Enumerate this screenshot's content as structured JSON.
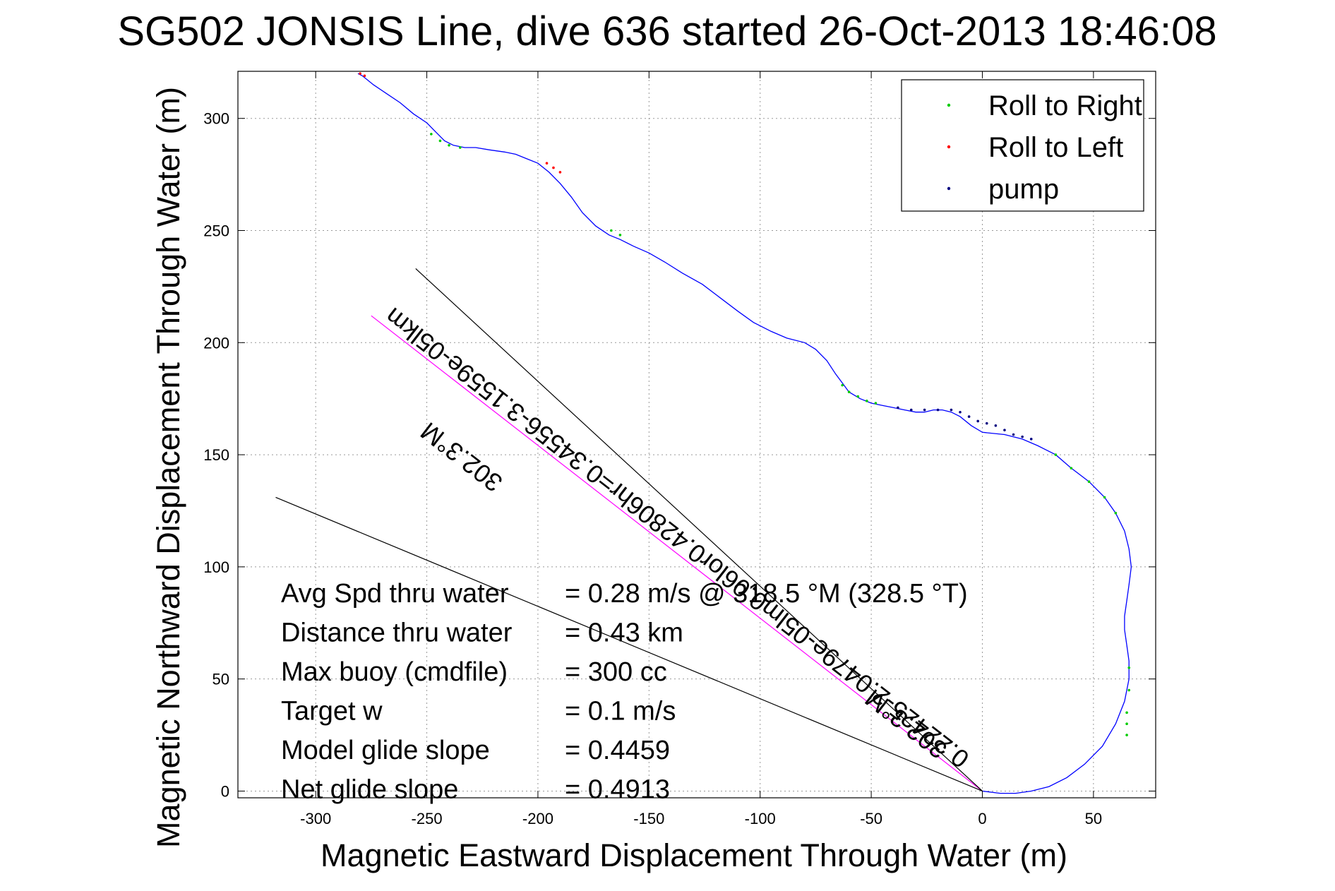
{
  "chart_data": {
    "type": "line",
    "title": "SG502 JONSIS Line, dive 636 started 26-Oct-2013 18:46:08",
    "xlabel": "Magnetic Eastward Displacement Through Water (m)",
    "ylabel": "Magnetic Northward Displacement Through Water (m)",
    "xlim": [
      -335,
      78
    ],
    "ylim": [
      -3,
      321
    ],
    "xticks": [
      -300,
      -250,
      -200,
      -150,
      -100,
      -50,
      0,
      50
    ],
    "yticks": [
      0,
      50,
      100,
      150,
      200,
      250,
      300
    ],
    "grid": true,
    "legend_position": "top-right",
    "colors": {
      "track": "#0000ff",
      "roll_right": "#00cc00",
      "roll_left": "#ff0000",
      "pump": "#000080",
      "mean_line": "#ff00ff",
      "bound_line": "#000000"
    },
    "legend": [
      {
        "label": "Roll to Right",
        "color": "#00cc00"
      },
      {
        "label": "Roll to Left",
        "color": "#ff0000"
      },
      {
        "label": "pump",
        "color": "#000080"
      }
    ],
    "series": [
      {
        "type": "line",
        "x": [
          0,
          8,
          15,
          22,
          30,
          38,
          46,
          54,
          60,
          64,
          66,
          66,
          65,
          64,
          64,
          65,
          66,
          67,
          66,
          64,
          60,
          55,
          48,
          40,
          33,
          25,
          18,
          10,
          0,
          -5,
          -10,
          -14,
          -18,
          -22,
          -26,
          -30,
          -35,
          -40,
          -45,
          -50,
          -55,
          -60,
          -63,
          -66,
          -70,
          -75,
          -80,
          -88,
          -95,
          -103,
          -110,
          -118,
          -126,
          -135,
          -143,
          -150,
          -157,
          -163,
          -168,
          -174,
          -180,
          -185,
          -190,
          -195,
          -200,
          -205,
          -210,
          -215,
          -222,
          -228,
          -233,
          -238,
          -242,
          -246,
          -250,
          -256,
          -262,
          -268,
          -274,
          -279,
          -281
        ],
        "y": [
          0,
          -1,
          -1,
          0,
          2,
          6,
          12,
          20,
          30,
          40,
          50,
          58,
          65,
          72,
          78,
          85,
          92,
          100,
          108,
          116,
          124,
          131,
          138,
          144,
          150,
          154,
          157,
          159,
          160,
          163,
          167,
          169,
          170,
          170,
          169,
          169,
          170,
          171,
          172,
          173,
          175,
          178,
          182,
          186,
          192,
          197,
          200,
          202,
          205,
          209,
          214,
          220,
          226,
          231,
          236,
          240,
          243,
          246,
          248,
          252,
          258,
          265,
          271,
          276,
          280,
          282,
          284,
          285,
          286,
          287,
          287,
          288,
          290,
          294,
          298,
          302,
          307,
          311,
          315,
          319,
          320
        ]
      },
      {
        "name": "Roll to Right",
        "type": "scatter",
        "x": [
          66,
          66,
          65,
          65,
          65,
          60,
          55,
          48,
          40,
          33,
          -48,
          -52,
          -56,
          -60,
          -63,
          -235,
          -240,
          -244,
          -248,
          -163,
          -167
        ],
        "y": [
          55,
          45,
          35,
          30,
          25,
          124,
          131,
          138,
          144,
          150,
          173,
          174,
          176,
          178,
          181,
          287,
          288,
          290,
          293,
          248,
          250
        ]
      },
      {
        "name": "Roll to Left",
        "type": "scatter",
        "x": [
          -196,
          -193,
          -190,
          -280,
          -278
        ],
        "y": [
          280,
          278,
          276,
          320,
          319
        ]
      },
      {
        "name": "pump",
        "type": "scatter",
        "x": [
          -38,
          -32,
          -26,
          -20,
          -14,
          -10,
          -6,
          -2,
          2,
          6,
          10,
          14,
          18,
          22
        ],
        "y": [
          171,
          170,
          170,
          170,
          170,
          169,
          167,
          165,
          164,
          163,
          161,
          159,
          158,
          157
        ]
      }
    ],
    "reference_lines": [
      {
        "x": [
          0,
          -275
        ],
        "y": [
          0,
          212
        ],
        "color": "#ff00ff"
      },
      {
        "x": [
          0,
          -255
        ],
        "y": [
          0,
          233
        ],
        "color": "#000000"
      },
      {
        "x": [
          0,
          -318
        ],
        "y": [
          0,
          131
        ],
        "color": "#000000"
      }
    ],
    "annotations": {
      "rotated": [
        {
          "text": "0.22425-2.0479e-05lm0.06lor0.42806hr=0.34556-3.1559e-05lkm"
        },
        {
          "text": "302.3°M"
        },
        {
          "text": "302.3°M"
        }
      ],
      "stats": [
        {
          "label": "Avg Spd thru water",
          "value": "=  0.28 m/s @ 318.5 °M (328.5 °T)"
        },
        {
          "label": "Distance thru water",
          "value": "=  0.43 km"
        },
        {
          "label": "Max buoy (cmdfile)",
          "value": "= 300 cc"
        },
        {
          "label": "Target w",
          "value": "= 0.1 m/s"
        },
        {
          "label": "Model glide slope",
          "value": "= 0.4459"
        },
        {
          "label": "Net glide slope",
          "value": "= 0.4913"
        }
      ]
    }
  }
}
